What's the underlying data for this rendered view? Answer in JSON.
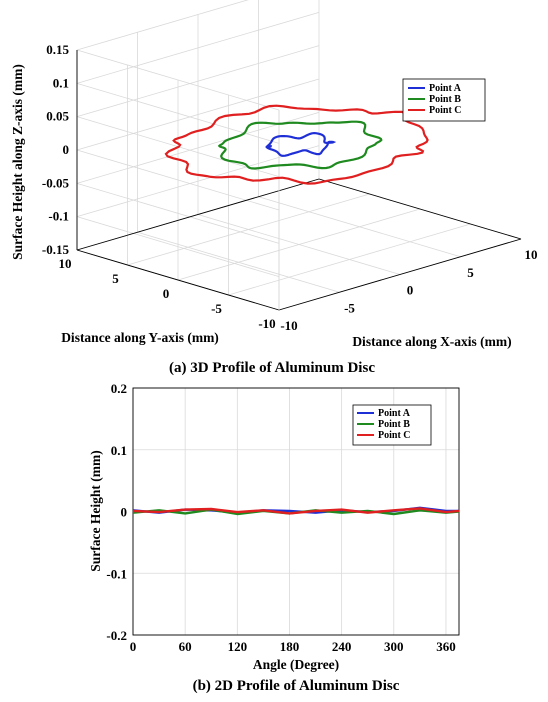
{
  "chart_data": [
    {
      "type": "line",
      "subtype": "3d",
      "caption": "(a) 3D Profile of Aluminum Disc",
      "xlabel": "Distance along X-axis (mm)",
      "ylabel": "Distance along Y-axis (mm)",
      "zlabel": "Surface Height along Z-axis (mm)",
      "xlim": [
        -10,
        10
      ],
      "ylim": [
        -10,
        10
      ],
      "zlim": [
        -0.15,
        0.15
      ],
      "xticks": [
        "-10",
        "-5",
        "0",
        "5",
        "10"
      ],
      "yticks": [
        "-10",
        "-5",
        "0",
        "5",
        "10"
      ],
      "zticks": [
        "-0.15",
        "-0.1",
        "-0.05",
        "0",
        "0.05",
        "0.1",
        "0.15"
      ],
      "grid": true,
      "legend_position": "top-right",
      "series": [
        {
          "name": "Point A",
          "color": "#1f2fd6",
          "radius_mm": 2.0,
          "z_mm": 0
        },
        {
          "name": "Point B",
          "color": "#1f8a1f",
          "radius_mm": 5.0,
          "z_mm": 0
        },
        {
          "name": "Point C",
          "color": "#e02020",
          "radius_mm": 8.0,
          "z_mm": 0
        }
      ]
    },
    {
      "type": "line",
      "caption": "(b) 2D Profile of Aluminum Disc",
      "xlabel": "Angle (Degree)",
      "ylabel": "Surface Height (mm)",
      "xlim": [
        0,
        375
      ],
      "ylim": [
        -0.2,
        0.2
      ],
      "xticks": [
        "0",
        "60",
        "120",
        "180",
        "240",
        "300",
        "360"
      ],
      "yticks": [
        "-0.2",
        "-0.1",
        "0",
        "0.1",
        "0.2"
      ],
      "grid": true,
      "legend_position": "top-right",
      "series": [
        {
          "name": "Point A",
          "color": "#1f2fd6",
          "x": [
            0,
            30,
            60,
            90,
            120,
            150,
            180,
            210,
            240,
            270,
            300,
            330,
            360,
            375
          ],
          "values": [
            0.002,
            -0.002,
            0.003,
            0.002,
            -0.002,
            0.002,
            0.001,
            -0.002,
            0.002,
            -0.001,
            0.001,
            0.006,
            0.001,
            0.001
          ]
        },
        {
          "name": "Point B",
          "color": "#1f8a1f",
          "x": [
            0,
            30,
            60,
            90,
            120,
            150,
            180,
            210,
            240,
            270,
            300,
            330,
            360,
            375
          ],
          "values": [
            -0.002,
            0.002,
            -0.003,
            0.003,
            -0.004,
            0.001,
            -0.003,
            0.002,
            -0.002,
            0.001,
            -0.004,
            0.002,
            -0.002,
            0.0
          ]
        },
        {
          "name": "Point C",
          "color": "#e02020",
          "x": [
            0,
            30,
            60,
            90,
            120,
            150,
            180,
            210,
            240,
            270,
            300,
            330,
            360,
            375
          ],
          "values": [
            0.001,
            -0.001,
            0.003,
            0.004,
            -0.001,
            0.002,
            -0.003,
            0.001,
            0.003,
            -0.002,
            0.002,
            0.005,
            -0.001,
            0.001
          ]
        }
      ]
    }
  ]
}
